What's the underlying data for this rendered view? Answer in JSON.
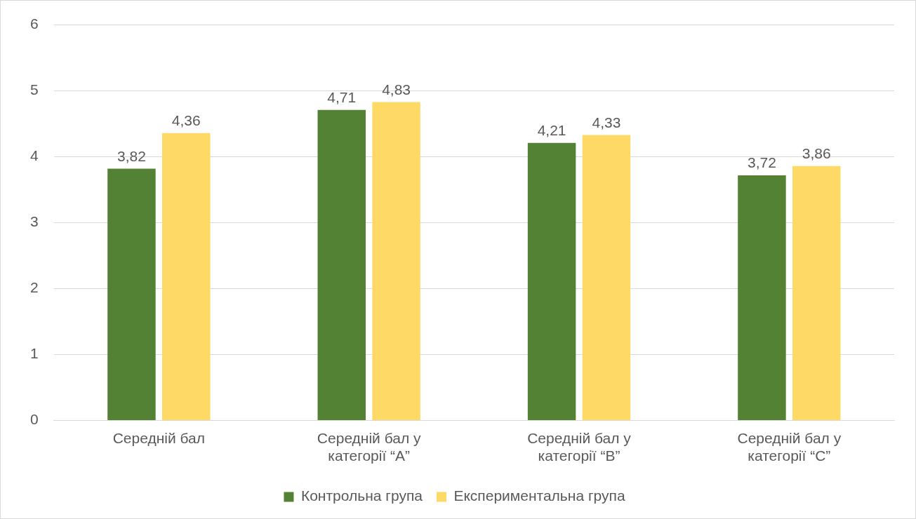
{
  "chart_data": {
    "type": "bar",
    "categories": [
      "Середній бал",
      "Середній бал у категорії “A”",
      "Середній бал у категорії “B”",
      "Середній бал у категорії “C”"
    ],
    "series": [
      {
        "name": "Контрольна група",
        "color": "#548235",
        "values": [
          3.82,
          4.71,
          4.21,
          3.72
        ],
        "value_labels": [
          "3,82",
          "4,71",
          "4,21",
          "3,72"
        ]
      },
      {
        "name": "Експериментальна група",
        "color": "#ffd966",
        "values": [
          4.36,
          4.83,
          4.33,
          3.86
        ],
        "value_labels": [
          "4,36",
          "4,83",
          "4,33",
          "3,86"
        ]
      }
    ],
    "ylim": [
      0,
      6
    ],
    "yticks": [
      0,
      1,
      2,
      3,
      4,
      5,
      6
    ],
    "grid": "y",
    "legend": "bottom"
  }
}
